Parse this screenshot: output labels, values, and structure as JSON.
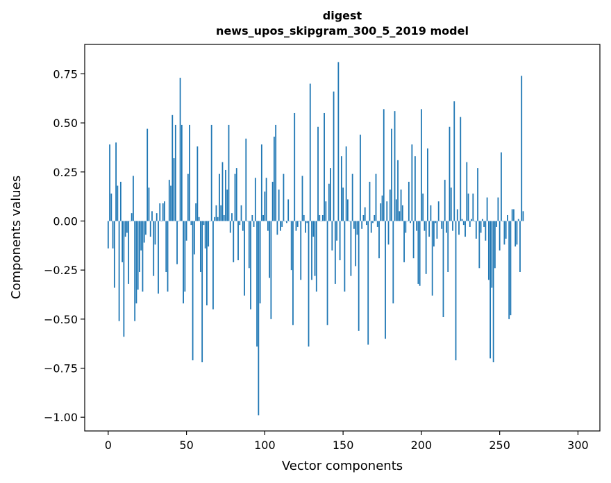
{
  "chart_data": {
    "type": "bar",
    "title_line1": "digest",
    "title_line2": "news_upos_skipgram_300_5_2019 model",
    "xlabel": "Vector components",
    "ylabel": "Components values",
    "xlim": [
      -15,
      314
    ],
    "ylim": [
      -1.07,
      0.9
    ],
    "xticks": [
      0,
      50,
      100,
      150,
      200,
      250,
      300
    ],
    "xtick_labels": [
      "0",
      "50",
      "100",
      "150",
      "200",
      "250",
      "300"
    ],
    "yticks": [
      -1.0,
      -0.75,
      -0.5,
      -0.25,
      0.0,
      0.25,
      0.5,
      0.75
    ],
    "ytick_labels": [
      "−1.00",
      "−0.75",
      "−0.50",
      "−0.25",
      "0.00",
      "0.25",
      "0.50",
      "0.75"
    ],
    "bar_color": "#1f77b4",
    "values": [
      -0.14,
      0.39,
      0.14,
      -0.14,
      -0.34,
      0.4,
      0.18,
      -0.51,
      0.2,
      -0.21,
      -0.59,
      -0.08,
      -0.06,
      -0.32,
      0.0,
      0.04,
      0.23,
      -0.51,
      -0.42,
      -0.35,
      -0.26,
      -0.15,
      -0.36,
      -0.11,
      -0.07,
      0.47,
      0.17,
      -0.08,
      0.05,
      -0.28,
      -0.12,
      0.04,
      -0.37,
      0.09,
      0.0,
      0.09,
      0.1,
      -0.26,
      -0.36,
      0.21,
      0.18,
      0.54,
      0.32,
      0.49,
      -0.22,
      0.0,
      0.73,
      0.49,
      -0.42,
      -0.36,
      -0.1,
      0.24,
      0.49,
      -0.02,
      -0.71,
      -0.17,
      0.09,
      0.38,
      0.02,
      -0.26,
      -0.72,
      -0.02,
      -0.14,
      -0.43,
      -0.13,
      0.0,
      0.49,
      -0.45,
      0.02,
      0.08,
      0.02,
      0.24,
      0.08,
      0.3,
      0.03,
      0.26,
      0.16,
      0.49,
      -0.06,
      0.04,
      -0.21,
      0.24,
      0.27,
      -0.2,
      -0.02,
      0.08,
      -0.05,
      -0.38,
      0.42,
      0.0,
      -0.24,
      -0.45,
      0.03,
      -0.03,
      0.22,
      -0.64,
      -0.99,
      -0.42,
      0.39,
      0.03,
      0.15,
      0.22,
      -0.05,
      -0.29,
      -0.5,
      0.2,
      0.43,
      0.49,
      -0.07,
      0.16,
      -0.05,
      -0.03,
      0.24,
      0.0,
      -0.01,
      0.11,
      0.0,
      -0.25,
      -0.53,
      0.55,
      -0.05,
      -0.03,
      0.0,
      -0.3,
      0.23,
      0.03,
      -0.06,
      -0.01,
      -0.64,
      0.7,
      -0.3,
      -0.08,
      -0.28,
      -0.36,
      0.48,
      0.03,
      0.0,
      0.03,
      0.55,
      0.1,
      -0.53,
      0.19,
      0.27,
      -0.15,
      0.66,
      -0.32,
      -0.1,
      0.81,
      -0.2,
      0.33,
      0.17,
      -0.36,
      0.38,
      0.11,
      0.0,
      -0.28,
      0.24,
      -0.04,
      -0.23,
      -0.07,
      -0.56,
      0.44,
      -0.04,
      0.03,
      0.07,
      -0.02,
      -0.63,
      0.2,
      -0.06,
      -0.01,
      0.03,
      0.24,
      -0.03,
      -0.19,
      0.09,
      0.13,
      0.57,
      -0.6,
      0.1,
      -0.12,
      0.16,
      0.47,
      -0.42,
      0.56,
      0.11,
      0.31,
      0.05,
      0.16,
      0.08,
      -0.21,
      -0.06,
      0.0,
      0.2,
      -0.01,
      0.39,
      -0.19,
      0.33,
      -0.05,
      -0.32,
      -0.33,
      0.57,
      0.14,
      -0.05,
      -0.27,
      0.37,
      -0.08,
      0.08,
      -0.38,
      -0.13,
      -0.01,
      -0.09,
      0.1,
      0.0,
      -0.04,
      -0.49,
      0.21,
      -0.06,
      -0.26,
      0.48,
      0.17,
      -0.05,
      0.61,
      -0.71,
      0.06,
      -0.07,
      0.53,
      0.01,
      -0.02,
      -0.08,
      0.3,
      0.14,
      -0.03,
      0.01,
      0.14,
      0.0,
      -0.09,
      0.27,
      -0.24,
      -0.06,
      0.01,
      -0.03,
      -0.1,
      0.12,
      -0.3,
      -0.7,
      -0.34,
      -0.72,
      -0.24,
      -0.03,
      0.12,
      -0.15,
      0.35,
      0.0,
      -0.12,
      -0.09,
      0.03,
      -0.5,
      -0.48,
      0.06,
      0.06,
      -0.13,
      -0.12,
      0.01,
      -0.26,
      0.74,
      0.05
    ]
  }
}
